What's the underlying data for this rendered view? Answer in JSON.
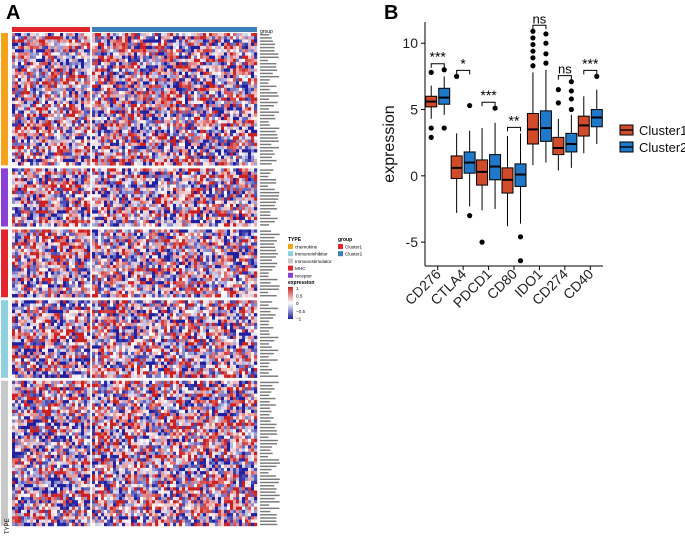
{
  "panels": {
    "a": "A",
    "b": "B"
  },
  "heatmap": {
    "group_header": "group",
    "type_axis_label": "TYPE",
    "legend": {
      "type_title": "TYPE",
      "types": [
        {
          "name": "chemokine",
          "color": "#f5a31a"
        },
        {
          "name": "Immunoinhibitor",
          "color": "#8fd0de"
        },
        {
          "name": "Immunostimulator",
          "color": "#c8c8c8"
        },
        {
          "name": "MHC",
          "color": "#e3252e"
        },
        {
          "name": "receptor",
          "color": "#8a3fd6"
        }
      ],
      "group_title": "group",
      "groups": [
        {
          "name": "Cluster1",
          "color": "#e3252e"
        },
        {
          "name": "Cluster2",
          "color": "#3d7fb8"
        }
      ],
      "expression_title": "expression",
      "expression_ticks": [
        "1",
        "0.5",
        "0",
        "−0.5",
        "−1"
      ],
      "low_color": "#1f1fa0",
      "mid_color": "#ffffff",
      "high_color": "#cc2020"
    },
    "row_blocks": [
      {
        "type": "chemokine",
        "rows": 41
      },
      {
        "type": "receptor",
        "rows": 18
      },
      {
        "type": "MHC",
        "rows": 21
      },
      {
        "type": "Immunoinhibitor",
        "rows": 24
      },
      {
        "type": "Immunostimulator",
        "rows": 45
      }
    ]
  },
  "chart_data": {
    "type": "boxplot",
    "title": "",
    "xlabel": "",
    "ylabel": "expression",
    "ylim": [
      -6.8,
      11.6
    ],
    "yticks": [
      -5,
      0,
      5,
      10
    ],
    "categories": [
      "CD276",
      "CTLA4",
      "PDCD1",
      "CD80",
      "IDO1",
      "CD274",
      "CD40"
    ],
    "significance": [
      "***",
      "*",
      "***",
      "**",
      "ns",
      "ns",
      "***"
    ],
    "legend": {
      "placement": "right"
    },
    "series": [
      {
        "name": "Cluster1",
        "color": "#cf4b2a",
        "boxes": [
          {
            "min": 4.3,
            "q1": 5.2,
            "median": 5.6,
            "q3": 6.0,
            "max": 6.8,
            "outliers": [
              2.9,
              3.6,
              7.8
            ]
          },
          {
            "min": -2.8,
            "q1": -0.2,
            "median": 0.6,
            "q3": 1.5,
            "max": 3.2,
            "outliers": [
              7.5
            ]
          },
          {
            "min": -2.6,
            "q1": -0.7,
            "median": 0.3,
            "q3": 1.2,
            "max": 3.6,
            "outliers": [
              -5.0
            ]
          },
          {
            "min": -3.8,
            "q1": -1.3,
            "median": -0.3,
            "q3": 0.6,
            "max": 3.0,
            "outliers": []
          },
          {
            "min": 0.8,
            "q1": 2.4,
            "median": 3.5,
            "q3": 4.7,
            "max": 7.8,
            "outliers": [
              8.3,
              8.9,
              9.4,
              9.9,
              10.4,
              10.9
            ]
          },
          {
            "min": 0.4,
            "q1": 1.6,
            "median": 2.1,
            "q3": 2.9,
            "max": 4.3,
            "outliers": [
              5.5,
              6.5
            ]
          },
          {
            "min": 1.7,
            "q1": 3.0,
            "median": 3.8,
            "q3": 4.5,
            "max": 6.0,
            "outliers": []
          }
        ]
      },
      {
        "name": "Cluster2",
        "color": "#1f78c8",
        "boxes": [
          {
            "min": 4.6,
            "q1": 5.4,
            "median": 5.9,
            "q3": 6.6,
            "max": 7.5,
            "outliers": [
              3.6,
              8.0
            ]
          },
          {
            "min": -2.3,
            "q1": 0.2,
            "median": 1.0,
            "q3": 1.8,
            "max": 3.4,
            "outliers": [
              -3.0,
              5.3
            ]
          },
          {
            "min": -2.5,
            "q1": -0.3,
            "median": 0.7,
            "q3": 1.6,
            "max": 4.0,
            "outliers": [
              5.1
            ]
          },
          {
            "min": -3.6,
            "q1": -0.8,
            "median": 0.1,
            "q3": 0.9,
            "max": 3.2,
            "outliers": [
              -4.6,
              -6.4
            ]
          },
          {
            "min": 1.0,
            "q1": 2.6,
            "median": 3.6,
            "q3": 4.9,
            "max": 8.0,
            "outliers": [
              8.5,
              9.2,
              10.0,
              10.7
            ]
          },
          {
            "min": 0.6,
            "q1": 1.8,
            "median": 2.4,
            "q3": 3.2,
            "max": 4.6,
            "outliers": [
              5.0,
              5.8,
              6.4,
              7.1
            ]
          },
          {
            "min": 2.4,
            "q1": 3.7,
            "median": 4.4,
            "q3": 5.0,
            "max": 6.5,
            "outliers": [
              7.5
            ]
          }
        ]
      }
    ]
  }
}
